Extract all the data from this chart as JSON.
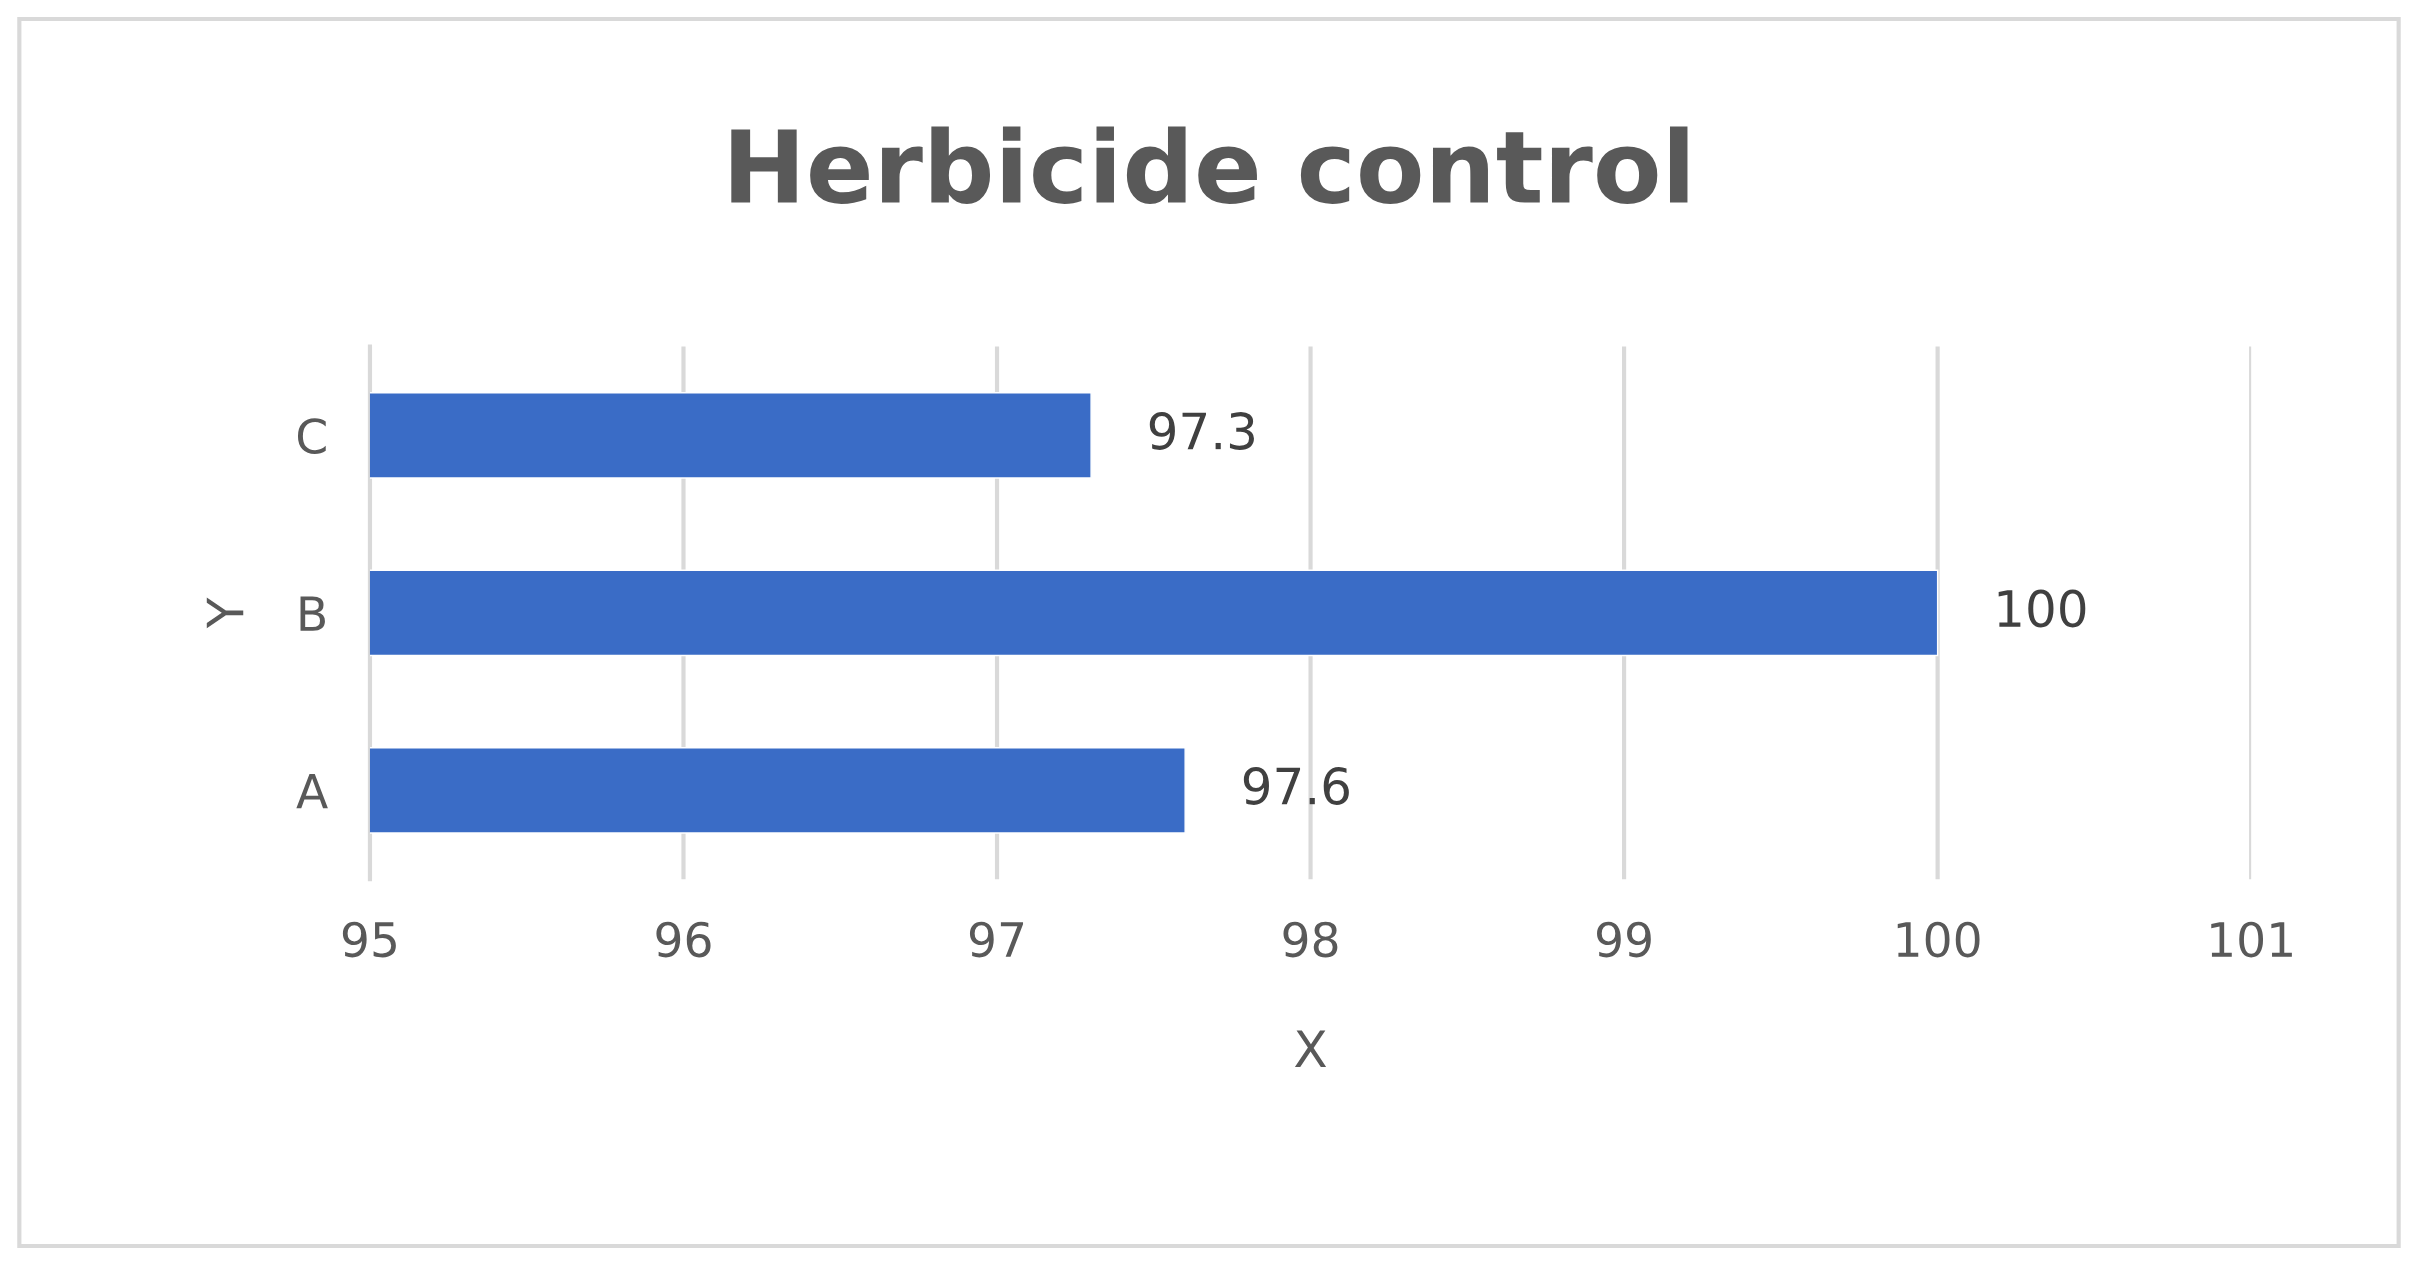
{
  "chart_data": {
    "type": "bar",
    "orientation": "horizontal",
    "title": "Herbicide control",
    "xlabel": "X",
    "ylabel": "Y",
    "categories": [
      "C",
      "B",
      "A"
    ],
    "series": [
      {
        "color": "#3a6cc6",
        "values": [
          97.3,
          100,
          97.6
        ]
      }
    ],
    "xlim": [
      95,
      101
    ],
    "xticks": [
      95,
      96,
      97,
      98,
      99,
      100,
      101
    ],
    "grid": "x",
    "data_labels": true
  }
}
